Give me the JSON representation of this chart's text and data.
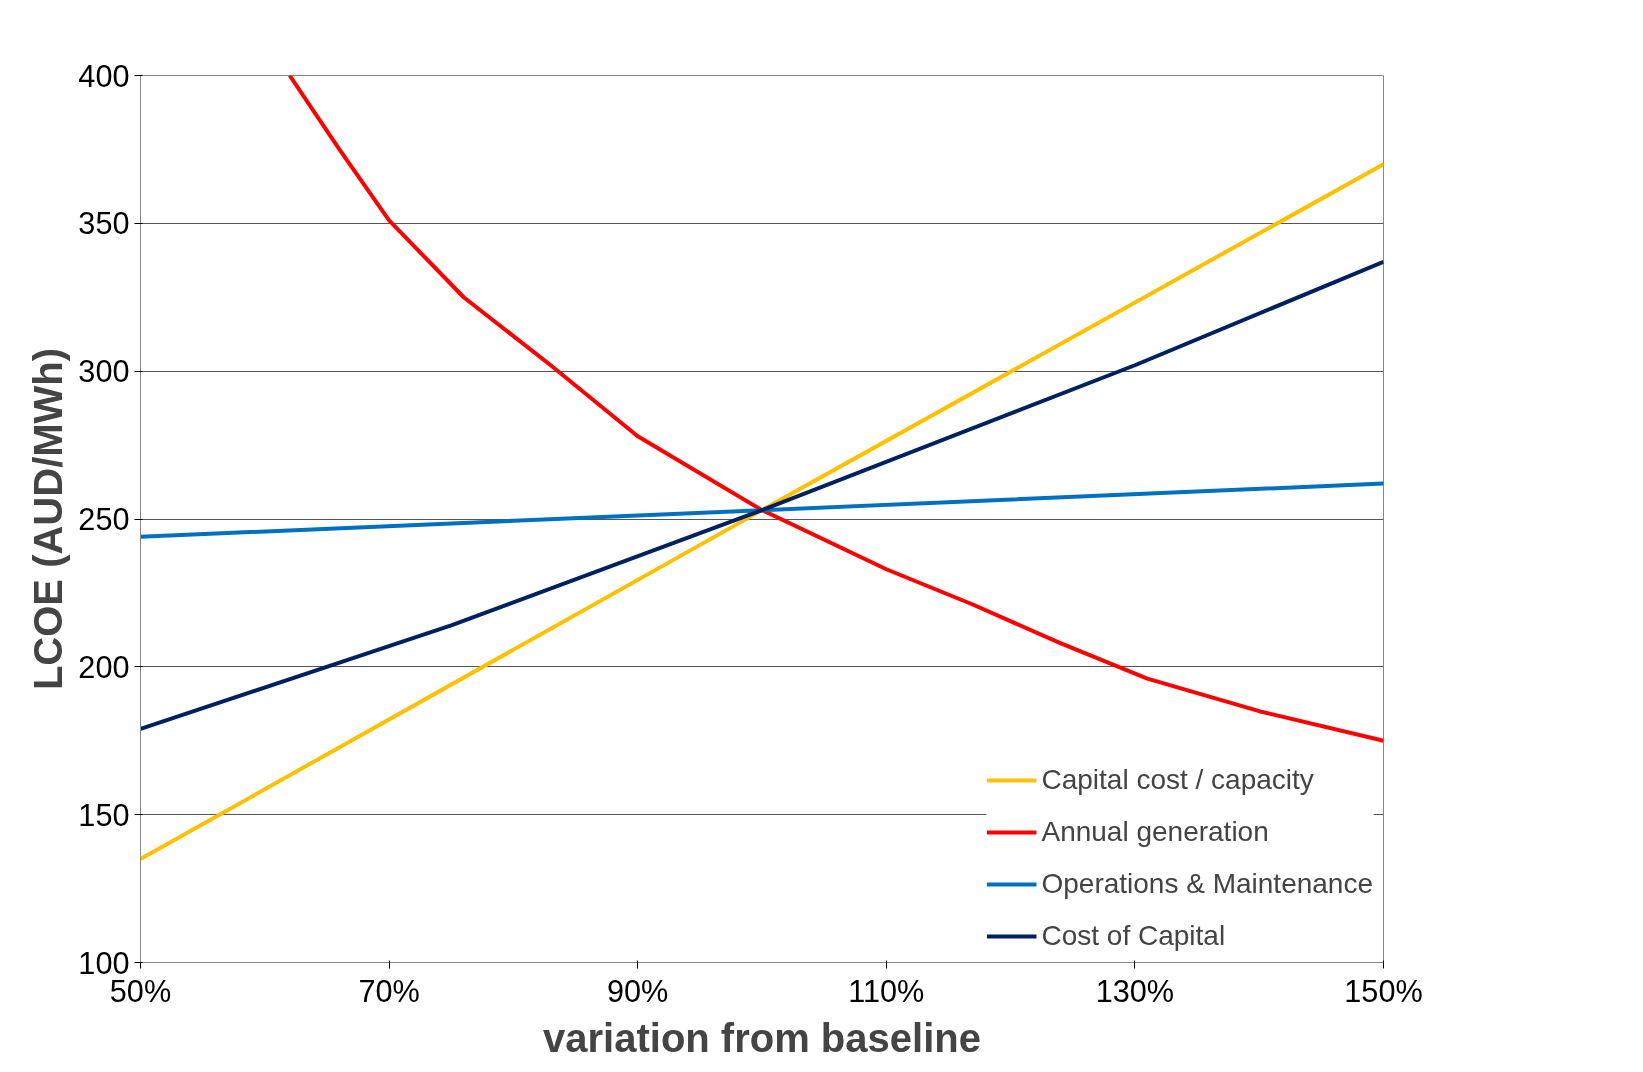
{
  "chart_data": {
    "type": "line",
    "xlabel": "variation from baseline",
    "ylabel": "LCOE (AUD/MWh)",
    "xlim": [
      50,
      150
    ],
    "ylim": [
      100,
      400
    ],
    "xticks": [
      {
        "value": 50,
        "label": "50%"
      },
      {
        "value": 70,
        "label": "70%"
      },
      {
        "value": 90,
        "label": "90%"
      },
      {
        "value": 110,
        "label": "110%"
      },
      {
        "value": 130,
        "label": "130%"
      },
      {
        "value": 150,
        "label": "150%"
      }
    ],
    "yticks": [
      100,
      150,
      200,
      250,
      300,
      350,
      400
    ],
    "grid": "y",
    "legend": "bottom right",
    "marker": "none",
    "line_style": "solid",
    "series": [
      {
        "name": "Capital cost / capacity",
        "color": "#ffc000",
        "x": [
          50,
          100,
          150
        ],
        "values": [
          135,
          253,
          370
        ]
      },
      {
        "name": "Annual generation",
        "color": "#ff0000",
        "x": [
          62,
          66,
          70,
          76,
          83,
          90,
          100,
          110,
          117,
          124,
          131,
          140,
          150
        ],
        "values": [
          400,
          375,
          351,
          325,
          302,
          278,
          253,
          233,
          221,
          208,
          196,
          185,
          175
        ]
      },
      {
        "name": "Operations & Maintenance",
        "color": "#0070c0",
        "x": [
          50,
          100,
          150
        ],
        "values": [
          244,
          253,
          262
        ]
      },
      {
        "name": "Cost of Capital",
        "color": "#002060",
        "x": [
          50,
          75,
          100,
          130,
          150
        ],
        "values": [
          179,
          214,
          253,
          302,
          337
        ]
      }
    ]
  }
}
